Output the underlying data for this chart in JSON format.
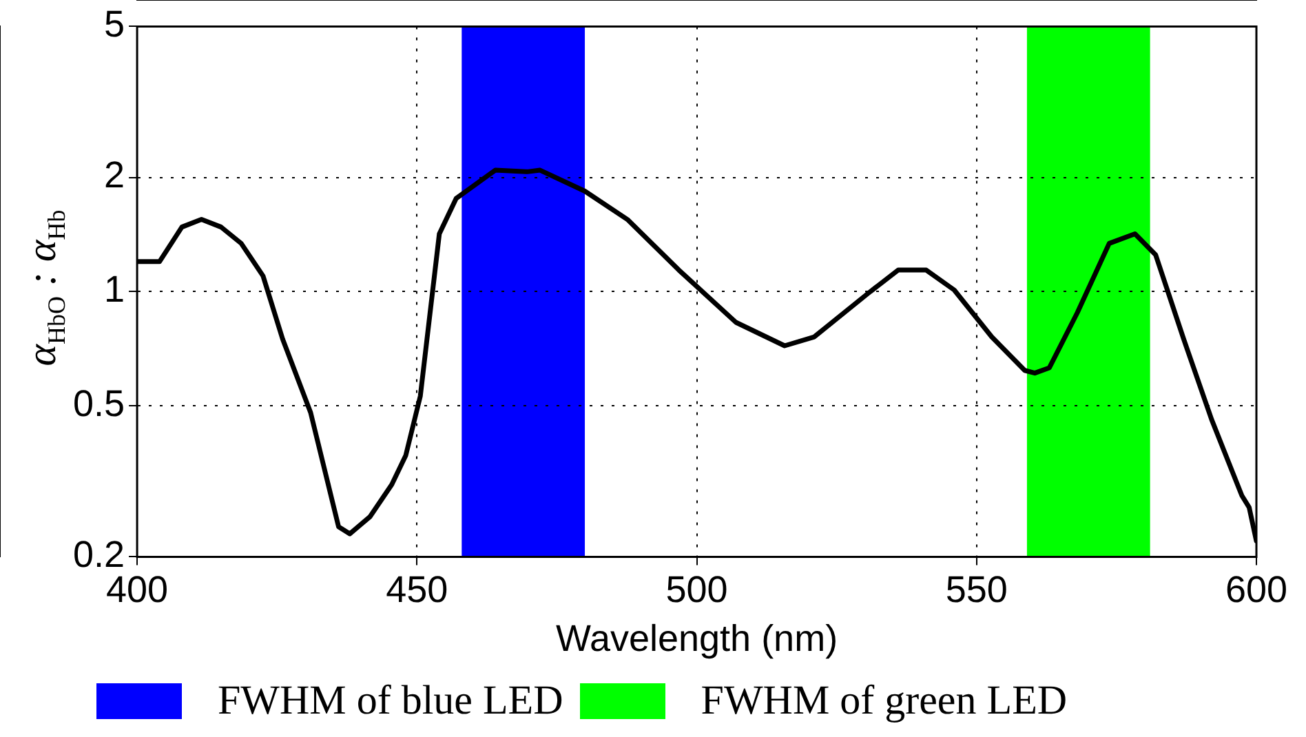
{
  "chart_data": {
    "type": "line",
    "xlabel": "Wavelength (nm)",
    "ylabel": "α$_{HbO}$ : α$_{Hb}$",
    "x": [
      400,
      404,
      408,
      411.5,
      415,
      418.6,
      422.5,
      426,
      431,
      436,
      438,
      441.6,
      445.5,
      448,
      450.6,
      454,
      457,
      464,
      469.7,
      472,
      480,
      487.6,
      496.8,
      507,
      515.7,
      521,
      531,
      536,
      541,
      546,
      552.7,
      558.6,
      560.4,
      563,
      568,
      573.7,
      578.3,
      582,
      587,
      592,
      597.4,
      598.7,
      600
    ],
    "series": [
      {
        "color": "#000000",
        "values": [
          1.2,
          1.2,
          1.48,
          1.55,
          1.48,
          1.34,
          1.1,
          0.75,
          0.48,
          0.24,
          0.23,
          0.255,
          0.31,
          0.37,
          0.53,
          1.42,
          1.76,
          2.09,
          2.07,
          2.09,
          1.84,
          1.55,
          1.14,
          0.83,
          0.72,
          0.76,
          1.0,
          1.14,
          1.14,
          1.01,
          0.76,
          0.62,
          0.61,
          0.63,
          0.88,
          1.34,
          1.42,
          1.25,
          0.75,
          0.46,
          0.29,
          0.27,
          0.22
        ]
      }
    ],
    "bands": [
      {
        "axis": "x",
        "from": 458,
        "to": 480,
        "label": "FWHM of blue LED",
        "color": "#0000ff"
      },
      {
        "axis": "x",
        "from": 559,
        "to": 581,
        "label": "FWHM of green LED",
        "color": "#00ff00"
      }
    ],
    "xlim": [
      400,
      600
    ],
    "xticks": [
      400,
      450,
      500,
      550,
      600
    ],
    "ylim": [
      0.2,
      5
    ],
    "yticks": [
      0.2,
      0.5,
      1,
      2,
      5
    ],
    "log": "y",
    "grid": true,
    "legend": "bottom",
    "marker": "none",
    "line_style": "solid"
  }
}
